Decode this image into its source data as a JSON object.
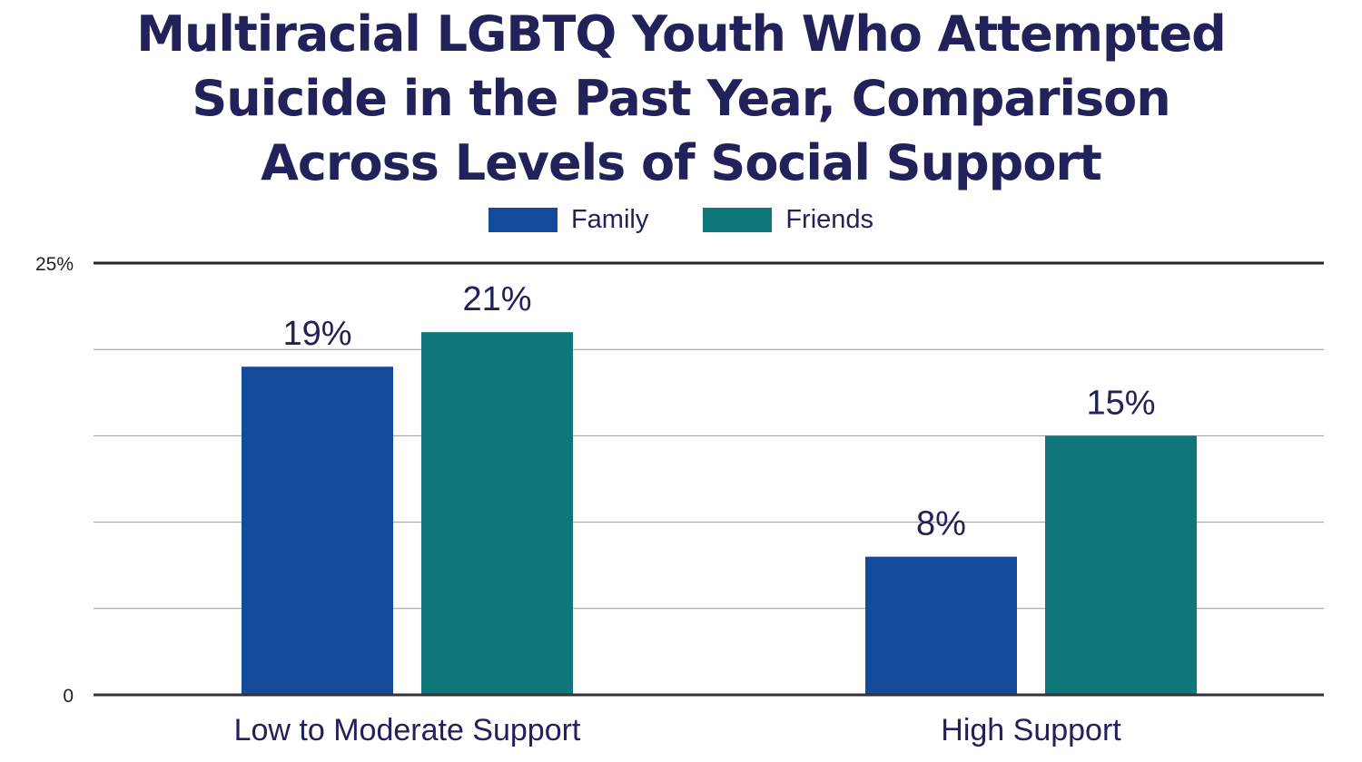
{
  "chart_data": {
    "type": "bar",
    "title": "Multiracial LGBTQ Youth Who Attempted Suicide in the Past Year, Comparison Across Levels of Social Support",
    "title_lines": [
      "Multiracial LGBTQ Youth Who Attempted",
      "Suicide in the Past Year, Comparison",
      "Across Levels of Social Support"
    ],
    "categories": [
      "Low to Moderate Support",
      "High Support"
    ],
    "series": [
      {
        "name": "Family",
        "values": [
          19,
          8
        ],
        "labels": [
          "19%",
          "8%"
        ],
        "color": "#144a9a"
      },
      {
        "name": "Friends",
        "values": [
          21,
          15
        ],
        "labels": [
          "21%",
          "15%"
        ],
        "color": "#0f7779"
      }
    ],
    "ylim": [
      0,
      25
    ],
    "yticks": [
      {
        "value": 0,
        "label": "0"
      },
      {
        "value": 25,
        "label": "25%"
      }
    ],
    "gridlines": [
      5,
      10,
      15,
      20
    ],
    "grid": true,
    "legend": "top-center",
    "xlabel": "",
    "ylabel": ""
  }
}
